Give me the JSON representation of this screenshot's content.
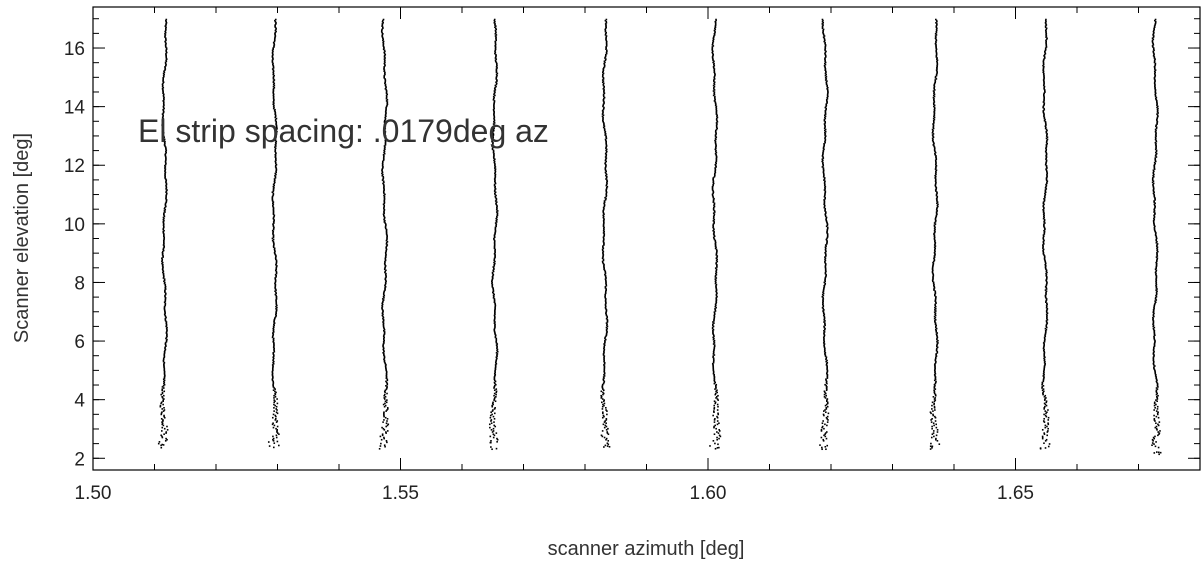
{
  "chart_data": {
    "type": "scatter",
    "title": "",
    "xlabel": "scanner azimuth [deg]",
    "ylabel": "Scanner elevation [deg]",
    "xlim": [
      1.5,
      1.68
    ],
    "ylim": [
      1.6,
      17.4
    ],
    "xticks": [
      1.5,
      1.55,
      1.6,
      1.65
    ],
    "xtick_labels": [
      "1.50",
      "1.55",
      "1.60",
      "1.65"
    ],
    "yticks": [
      2,
      4,
      6,
      8,
      10,
      12,
      14,
      16
    ],
    "ytick_labels": [
      "2",
      "4",
      "6",
      "8",
      "10",
      "12",
      "14",
      "16"
    ],
    "annotation": "El strip spacing: .0179deg az",
    "grid": false,
    "marker_color": "#000000",
    "strips": [
      {
        "az": 1.5115,
        "el_min": 2.6,
        "el_max": 17.0
      },
      {
        "az": 1.5294,
        "el_min": 2.6,
        "el_max": 17.0
      },
      {
        "az": 1.5473,
        "el_min": 2.6,
        "el_max": 17.0
      },
      {
        "az": 1.5652,
        "el_min": 2.6,
        "el_max": 17.0
      },
      {
        "az": 1.5831,
        "el_min": 2.6,
        "el_max": 17.0
      },
      {
        "az": 1.601,
        "el_min": 2.6,
        "el_max": 17.0
      },
      {
        "az": 1.6189,
        "el_min": 2.6,
        "el_max": 17.0
      },
      {
        "az": 1.6368,
        "el_min": 2.6,
        "el_max": 17.0
      },
      {
        "az": 1.6547,
        "el_min": 2.6,
        "el_max": 17.0
      },
      {
        "az": 1.6726,
        "el_min": 2.4,
        "el_max": 17.0
      }
    ]
  }
}
